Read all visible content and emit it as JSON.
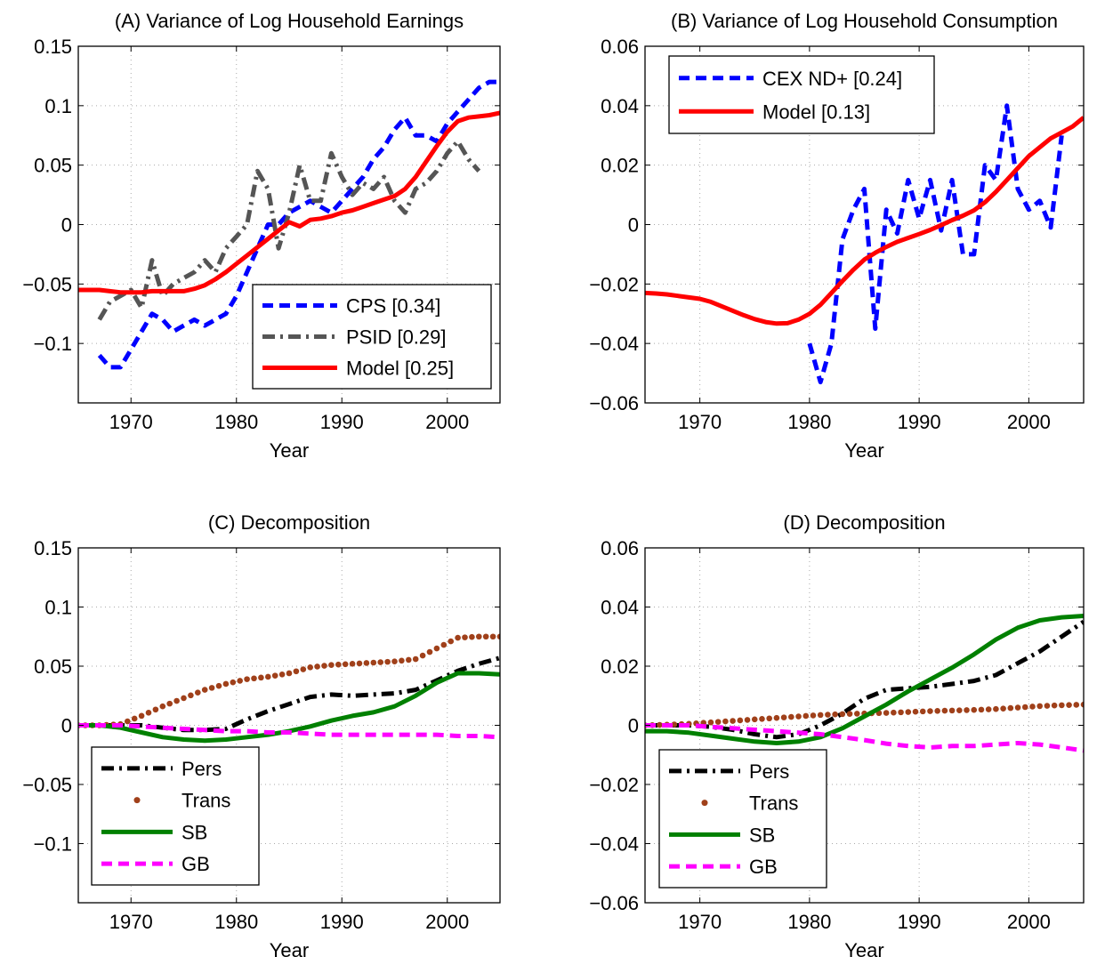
{
  "chart_data": [
    {
      "id": "A",
      "type": "line",
      "title": "(A) Variance of Log Household Earnings",
      "xlabel": "Year",
      "ylabel": "",
      "xlim": [
        1965,
        2005
      ],
      "ylim": [
        -0.15,
        0.15
      ],
      "xticks": [
        1970,
        1980,
        1990,
        2000
      ],
      "xtick_labels": [
        "1970",
        "1980",
        "1990",
        "2000"
      ],
      "yticks": [
        -0.1,
        -0.05,
        0,
        0.05,
        0.1,
        0.15
      ],
      "ytick_labels": [
        "−0.1",
        "−0.05",
        "0",
        "0.05",
        "0.1",
        "0.15"
      ],
      "grid": true,
      "legend_position": "bottom-right",
      "series": [
        {
          "name": "CPS [0.34]",
          "color": "#0000ff",
          "style": "dashed",
          "x": [
            1967,
            1968,
            1969,
            1970,
            1971,
            1972,
            1973,
            1974,
            1975,
            1976,
            1977,
            1978,
            1979,
            1980,
            1981,
            1982,
            1983,
            1984,
            1985,
            1986,
            1987,
            1988,
            1989,
            1990,
            1991,
            1992,
            1993,
            1994,
            1995,
            1996,
            1997,
            1998,
            1999,
            2000,
            2001,
            2002,
            2003,
            2004,
            2005
          ],
          "y": [
            -0.11,
            -0.12,
            -0.12,
            -0.105,
            -0.09,
            -0.075,
            -0.08,
            -0.09,
            -0.085,
            -0.08,
            -0.085,
            -0.08,
            -0.075,
            -0.06,
            -0.04,
            -0.02,
            0.0,
            0.0,
            0.01,
            0.015,
            0.02,
            0.015,
            0.01,
            0.02,
            0.03,
            0.04,
            0.055,
            0.065,
            0.08,
            0.09,
            0.075,
            0.075,
            0.07,
            0.085,
            0.095,
            0.105,
            0.115,
            0.12,
            0.12
          ]
        },
        {
          "name": "PSID [0.29]",
          "color": "#555555",
          "style": "dashdot",
          "x": [
            1967,
            1968,
            1969,
            1970,
            1971,
            1972,
            1973,
            1974,
            1975,
            1976,
            1977,
            1978,
            1979,
            1980,
            1981,
            1982,
            1983,
            1984,
            1985,
            1986,
            1987,
            1988,
            1989,
            1990,
            1991,
            1992,
            1993,
            1994,
            1995,
            1996,
            1997,
            1998,
            1999,
            2000,
            2001,
            2002,
            2003
          ],
          "y": [
            -0.08,
            -0.065,
            -0.06,
            -0.055,
            -0.07,
            -0.03,
            -0.06,
            -0.05,
            -0.045,
            -0.04,
            -0.03,
            -0.04,
            -0.02,
            -0.01,
            0.0,
            0.045,
            0.03,
            -0.02,
            0.01,
            0.05,
            0.02,
            0.02,
            0.06,
            0.04,
            0.025,
            0.035,
            0.03,
            0.04,
            0.02,
            0.01,
            0.03,
            0.035,
            0.045,
            0.06,
            0.07,
            0.055,
            0.045
          ]
        },
        {
          "name": "Model [0.25]",
          "color": "#ff0000",
          "style": "solid",
          "x": [
            1965,
            1966,
            1967,
            1968,
            1969,
            1970,
            1971,
            1972,
            1973,
            1974,
            1975,
            1976,
            1977,
            1978,
            1979,
            1980,
            1981,
            1982,
            1983,
            1984,
            1985,
            1986,
            1987,
            1988,
            1989,
            1990,
            1991,
            1992,
            1993,
            1994,
            1995,
            1996,
            1997,
            1998,
            1999,
            2000,
            2001,
            2002,
            2003,
            2004,
            2005
          ],
          "y": [
            -0.055,
            -0.055,
            -0.055,
            -0.056,
            -0.057,
            -0.057,
            -0.057,
            -0.056,
            -0.056,
            -0.056,
            -0.056,
            -0.054,
            -0.051,
            -0.046,
            -0.04,
            -0.033,
            -0.026,
            -0.019,
            -0.012,
            -0.005,
            0.002,
            -0.0015,
            0.004,
            0.005,
            0.007,
            0.01,
            0.012,
            0.015,
            0.018,
            0.021,
            0.024,
            0.03,
            0.04,
            0.053,
            0.066,
            0.078,
            0.087,
            0.09,
            0.091,
            0.092,
            0.094
          ]
        }
      ]
    },
    {
      "id": "B",
      "type": "line",
      "title": "(B) Variance of Log Household Consumption",
      "xlabel": "Year",
      "ylabel": "",
      "xlim": [
        1965,
        2005
      ],
      "ylim": [
        -0.06,
        0.06
      ],
      "xticks": [
        1970,
        1980,
        1990,
        2000
      ],
      "xtick_labels": [
        "1970",
        "1980",
        "1990",
        "2000"
      ],
      "yticks": [
        -0.06,
        -0.04,
        -0.02,
        0,
        0.02,
        0.04,
        0.06
      ],
      "ytick_labels": [
        "−0.06",
        "−0.04",
        "−0.02",
        "0",
        "0.02",
        "0.04",
        "0.06"
      ],
      "grid": true,
      "legend_position": "top-left",
      "series": [
        {
          "name": "CEX ND+ [0.24]",
          "color": "#0000ff",
          "style": "dashed",
          "x": [
            1980,
            1981,
            1982,
            1983,
            1984,
            1985,
            1986,
            1987,
            1988,
            1989,
            1990,
            1991,
            1992,
            1993,
            1994,
            1995,
            1996,
            1997,
            1998,
            1999,
            2000,
            2001,
            2002,
            2003
          ],
          "y": [
            -0.04,
            -0.053,
            -0.04,
            -0.005,
            0.005,
            0.012,
            -0.035,
            0.005,
            -0.003,
            0.015,
            0.002,
            0.015,
            -0.002,
            0.015,
            -0.01,
            -0.01,
            0.02,
            0.015,
            0.04,
            0.012,
            0.005,
            0.008,
            -0.001,
            0.03
          ]
        },
        {
          "name": "Model [0.13]",
          "color": "#ff0000",
          "style": "solid",
          "x": [
            1965,
            1966,
            1967,
            1968,
            1969,
            1970,
            1971,
            1972,
            1973,
            1974,
            1975,
            1976,
            1977,
            1978,
            1979,
            1980,
            1981,
            1982,
            1983,
            1984,
            1985,
            1986,
            1987,
            1988,
            1989,
            1990,
            1991,
            1992,
            1993,
            1994,
            1995,
            1996,
            1997,
            1998,
            1999,
            2000,
            2001,
            2002,
            2003,
            2004,
            2005
          ],
          "y": [
            -0.023,
            -0.0232,
            -0.0235,
            -0.024,
            -0.0245,
            -0.025,
            -0.026,
            -0.0275,
            -0.029,
            -0.0305,
            -0.0318,
            -0.0328,
            -0.0333,
            -0.0332,
            -0.032,
            -0.03,
            -0.027,
            -0.023,
            -0.019,
            -0.0152,
            -0.0118,
            -0.0095,
            -0.0075,
            -0.0058,
            -0.0045,
            -0.0032,
            -0.0018,
            -0.0002,
            0.0015,
            0.003,
            0.0048,
            0.0075,
            0.011,
            0.015,
            0.019,
            0.023,
            0.026,
            0.029,
            0.031,
            0.033,
            0.036
          ]
        }
      ]
    },
    {
      "id": "C",
      "type": "line",
      "title": "(C) Decomposition",
      "xlabel": "Year",
      "ylabel": "",
      "xlim": [
        1965,
        2005
      ],
      "ylim": [
        -0.15,
        0.15
      ],
      "xticks": [
        1970,
        1980,
        1990,
        2000
      ],
      "xtick_labels": [
        "1970",
        "1980",
        "1990",
        "2000"
      ],
      "yticks": [
        -0.1,
        -0.05,
        0,
        0.05,
        0.1,
        0.15
      ],
      "ytick_labels": [
        "−0.1",
        "−0.05",
        "0",
        "0.05",
        "0.1",
        "0.15"
      ],
      "grid": true,
      "legend_position": "bottom-left",
      "series": [
        {
          "name": "Pers",
          "color": "#000000",
          "style": "dashdot",
          "x": [
            1965,
            1967,
            1969,
            1971,
            1973,
            1975,
            1977,
            1979,
            1981,
            1983,
            1985,
            1987,
            1989,
            1991,
            1993,
            1995,
            1997,
            1999,
            2001,
            2003,
            2005
          ],
          "y": [
            0.0,
            0.0,
            0.0,
            0.0,
            -0.002,
            -0.004,
            -0.004,
            -0.003,
            0.005,
            0.012,
            0.018,
            0.024,
            0.026,
            0.025,
            0.026,
            0.027,
            0.03,
            0.038,
            0.046,
            0.052,
            0.057
          ]
        },
        {
          "name": "Trans",
          "color": "#a0401a",
          "style": "dotted",
          "x": [
            1965,
            1967,
            1969,
            1971,
            1973,
            1975,
            1977,
            1979,
            1981,
            1983,
            1985,
            1987,
            1989,
            1991,
            1993,
            1995,
            1997,
            1999,
            2001,
            2003,
            2005
          ],
          "y": [
            0.0,
            0.0,
            0.001,
            0.008,
            0.016,
            0.023,
            0.03,
            0.035,
            0.039,
            0.041,
            0.044,
            0.049,
            0.051,
            0.052,
            0.053,
            0.054,
            0.056,
            0.065,
            0.074,
            0.075,
            0.075
          ]
        },
        {
          "name": "SB",
          "color": "#008000",
          "style": "solid",
          "x": [
            1965,
            1967,
            1969,
            1971,
            1973,
            1975,
            1977,
            1979,
            1981,
            1983,
            1985,
            1987,
            1989,
            1991,
            1993,
            1995,
            1997,
            1999,
            2001,
            2003,
            2005
          ],
          "y": [
            0.0,
            0.0,
            -0.002,
            -0.006,
            -0.01,
            -0.012,
            -0.013,
            -0.012,
            -0.01,
            -0.008,
            -0.005,
            -0.001,
            0.004,
            0.008,
            0.011,
            0.016,
            0.025,
            0.036,
            0.044,
            0.044,
            0.043
          ]
        },
        {
          "name": "GB",
          "color": "#ff00ff",
          "style": "dashed",
          "x": [
            1965,
            1967,
            1969,
            1971,
            1973,
            1975,
            1977,
            1979,
            1981,
            1983,
            1985,
            1987,
            1989,
            1991,
            1993,
            1995,
            1997,
            1999,
            2001,
            2003,
            2005
          ],
          "y": [
            0.0,
            0.0,
            0.0,
            -0.001,
            -0.002,
            -0.003,
            -0.004,
            -0.005,
            -0.005,
            -0.006,
            -0.006,
            -0.007,
            -0.008,
            -0.008,
            -0.008,
            -0.008,
            -0.008,
            -0.008,
            -0.009,
            -0.009,
            -0.01
          ]
        }
      ]
    },
    {
      "id": "D",
      "type": "line",
      "title": "(D) Decomposition",
      "xlabel": "Year",
      "ylabel": "",
      "xlim": [
        1965,
        2005
      ],
      "ylim": [
        -0.06,
        0.06
      ],
      "xticks": [
        1970,
        1980,
        1990,
        2000
      ],
      "xtick_labels": [
        "1970",
        "1980",
        "1990",
        "2000"
      ],
      "yticks": [
        -0.06,
        -0.04,
        -0.02,
        0,
        0.02,
        0.04,
        0.06
      ],
      "ytick_labels": [
        "−0.06",
        "−0.04",
        "−0.02",
        "0",
        "0.02",
        "0.04",
        "0.06"
      ],
      "grid": true,
      "legend_position": "bottom-left",
      "series": [
        {
          "name": "Pers",
          "color": "#000000",
          "style": "dashdot",
          "x": [
            1965,
            1967,
            1969,
            1971,
            1973,
            1975,
            1977,
            1979,
            1981,
            1983,
            1985,
            1987,
            1989,
            1991,
            1993,
            1995,
            1997,
            1999,
            2001,
            2003,
            2005
          ],
          "y": [
            0.0,
            0.0,
            0.0,
            -0.0005,
            -0.0015,
            -0.003,
            -0.004,
            -0.003,
            0.0,
            0.004,
            0.009,
            0.012,
            0.0125,
            0.013,
            0.014,
            0.015,
            0.017,
            0.021,
            0.025,
            0.03,
            0.035
          ]
        },
        {
          "name": "Trans",
          "color": "#a0401a",
          "style": "dotted",
          "x": [
            1965,
            1967,
            1969,
            1971,
            1973,
            1975,
            1977,
            1979,
            1981,
            1983,
            1985,
            1987,
            1989,
            1991,
            1993,
            1995,
            1997,
            1999,
            2001,
            2003,
            2005
          ],
          "y": [
            0.0,
            0.0002,
            0.0005,
            0.001,
            0.0015,
            0.002,
            0.0025,
            0.003,
            0.0035,
            0.0038,
            0.004,
            0.0042,
            0.0045,
            0.0048,
            0.005,
            0.0052,
            0.0055,
            0.006,
            0.0065,
            0.0068,
            0.007
          ]
        },
        {
          "name": "SB",
          "color": "#008000",
          "style": "solid",
          "x": [
            1965,
            1967,
            1969,
            1971,
            1973,
            1975,
            1977,
            1979,
            1981,
            1983,
            1985,
            1987,
            1989,
            1991,
            1993,
            1995,
            1997,
            1999,
            2001,
            2003,
            2005
          ],
          "y": [
            -0.002,
            -0.002,
            -0.0025,
            -0.0035,
            -0.0045,
            -0.0055,
            -0.006,
            -0.0055,
            -0.004,
            -0.001,
            0.003,
            0.007,
            0.0115,
            0.0155,
            0.0195,
            0.024,
            0.029,
            0.033,
            0.0355,
            0.0365,
            0.037
          ]
        },
        {
          "name": "GB",
          "color": "#ff00ff",
          "style": "dashed",
          "x": [
            1965,
            1967,
            1969,
            1971,
            1973,
            1975,
            1977,
            1979,
            1981,
            1983,
            1985,
            1987,
            1989,
            1991,
            1993,
            1995,
            1997,
            1999,
            2001,
            2003,
            2005
          ],
          "y": [
            0.0,
            0.0,
            0.0,
            -0.0005,
            -0.001,
            -0.0015,
            -0.002,
            -0.0025,
            -0.003,
            -0.004,
            -0.005,
            -0.0062,
            -0.007,
            -0.0075,
            -0.007,
            -0.007,
            -0.0065,
            -0.006,
            -0.0065,
            -0.0075,
            -0.0085
          ]
        }
      ]
    }
  ]
}
